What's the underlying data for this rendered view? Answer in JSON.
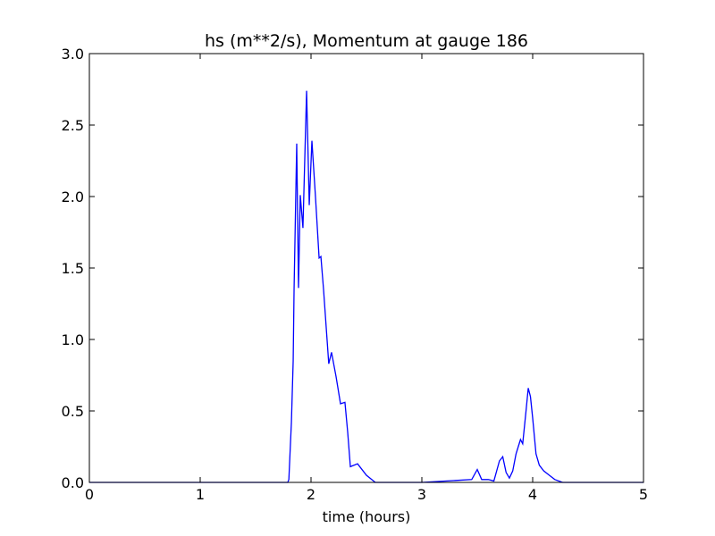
{
  "chart_data": {
    "type": "line",
    "title": "hs (m**2/s), Momentum at gauge 186",
    "xlabel": "time (hours)",
    "x": [
      0,
      1.0,
      1.79,
      1.8,
      1.823,
      1.839,
      1.847,
      1.871,
      1.887,
      1.903,
      1.927,
      1.96,
      1.984,
      2.008,
      2.04,
      2.073,
      2.089,
      2.113,
      2.16,
      2.185,
      2.226,
      2.266,
      2.306,
      2.331,
      2.355,
      2.42,
      2.5,
      2.58,
      3.0,
      3.45,
      3.5,
      3.54,
      3.6,
      3.65,
      3.7,
      3.73,
      3.76,
      3.79,
      3.82,
      3.85,
      3.87,
      3.89,
      3.91,
      3.94,
      3.96,
      3.98,
      4.0,
      4.03,
      4.06,
      4.1,
      4.15,
      4.2,
      4.27,
      5.0
    ],
    "series": [
      {
        "color": "#0000ff",
        "values": [
          0,
          0,
          0,
          0.02,
          0.42,
          0.85,
          1.35,
          2.37,
          1.36,
          2.01,
          1.78,
          2.74,
          1.94,
          2.39,
          2.0,
          1.57,
          1.58,
          1.35,
          0.83,
          0.91,
          0.74,
          0.55,
          0.56,
          0.35,
          0.11,
          0.13,
          0.05,
          0.0,
          0,
          0.02,
          0.09,
          0.02,
          0.02,
          0.01,
          0.15,
          0.18,
          0.07,
          0.03,
          0.08,
          0.2,
          0.25,
          0.3,
          0.27,
          0.5,
          0.66,
          0.6,
          0.45,
          0.2,
          0.12,
          0.08,
          0.05,
          0.02,
          0.0,
          0
        ]
      }
    ],
    "zero_line": {
      "value": 0,
      "color": "#000000",
      "dashed": true
    },
    "xlim": [
      0,
      5
    ],
    "xticks": [
      0,
      1,
      2,
      3,
      4,
      5
    ],
    "ylim": [
      0,
      3
    ],
    "yticks": [
      {
        "value": 0,
        "label": "0.0"
      },
      0.5,
      {
        "value": 1,
        "label": "1.0"
      },
      1.5,
      {
        "value": 2,
        "label": "2.0"
      },
      2.5,
      {
        "value": 3,
        "label": "3.0"
      }
    ]
  }
}
